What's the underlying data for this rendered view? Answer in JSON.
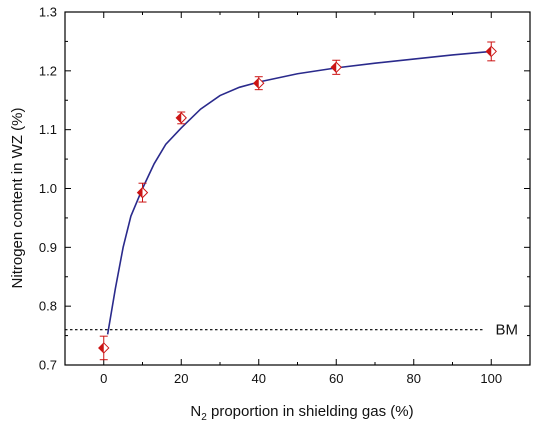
{
  "chart_data": {
    "type": "scatter",
    "xlabel": "N2 proportion in shielding gas (%)",
    "xlabel_parts": {
      "main": "N",
      "subscript": "2",
      "rest": " proportion in shielding gas (%)"
    },
    "ylabel": "Nitrogen content in WZ (%)",
    "xlim": [
      -10,
      110
    ],
    "ylim": [
      0.7,
      1.3
    ],
    "x_ticks": [
      0,
      20,
      40,
      60,
      80,
      100
    ],
    "y_ticks": [
      0.7,
      0.8,
      0.9,
      1.0,
      1.1,
      1.2,
      1.3
    ],
    "grid": false,
    "series": [
      {
        "x": [
          0,
          10,
          20,
          40,
          60,
          100
        ],
        "y": [
          0.729,
          0.993,
          1.12,
          1.179,
          1.206,
          1.233
        ],
        "yerr": [
          0.02,
          0.016,
          0.01,
          0.011,
          0.012,
          0.016
        ],
        "marker": "diamond",
        "color": "#cc1414"
      }
    ],
    "fit_curve": {
      "x": [
        1,
        3,
        5,
        7,
        10,
        13,
        16,
        20,
        25,
        30,
        35,
        40,
        50,
        60,
        70,
        80,
        90,
        100
      ],
      "y": [
        0.752,
        0.83,
        0.9,
        0.953,
        1.0,
        1.042,
        1.075,
        1.103,
        1.135,
        1.158,
        1.172,
        1.181,
        1.195,
        1.205,
        1.213,
        1.22,
        1.227,
        1.233
      ],
      "color": "#2a2a8c"
    },
    "reference_line": {
      "label": "BM",
      "y": 0.76,
      "style": "dotted"
    }
  },
  "colors": {
    "marker": "#cc1414",
    "curve": "#2a2a8c",
    "axis": "#000000"
  }
}
